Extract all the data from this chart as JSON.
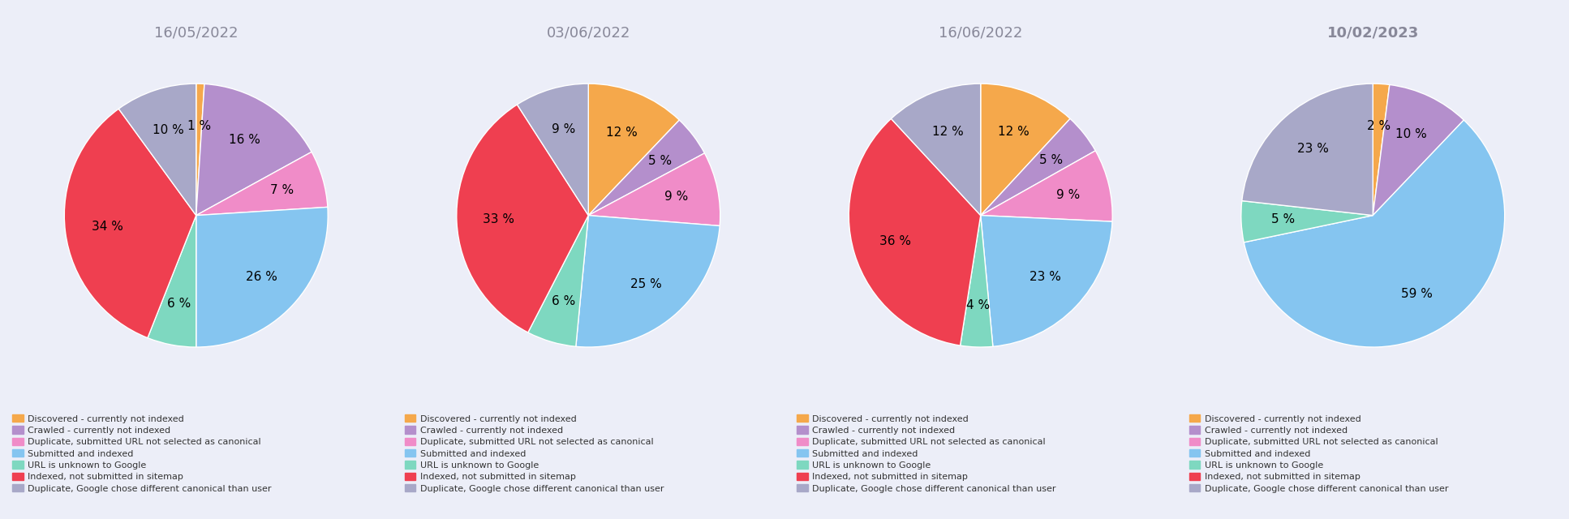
{
  "charts": [
    {
      "title": "16/05/2022",
      "title_bold": false,
      "values": [
        1,
        16,
        7,
        26,
        6,
        34,
        10
      ],
      "start_angle": 90
    },
    {
      "title": "03/06/2022",
      "title_bold": false,
      "values": [
        12,
        5,
        9,
        25,
        6,
        33,
        9
      ],
      "start_angle": 90
    },
    {
      "title": "16/06/2022",
      "title_bold": false,
      "values": [
        12,
        5,
        9,
        23,
        4,
        36,
        12
      ],
      "start_angle": 90
    },
    {
      "title": "10/02/2023",
      "title_bold": true,
      "values": [
        2,
        10,
        0,
        59,
        5,
        0,
        23
      ],
      "start_angle": 90
    }
  ],
  "slice_colors": [
    "#F5A84B",
    "#B48FCC",
    "#F08CC8",
    "#85C5F0",
    "#7ED8C0",
    "#EF3F50",
    "#A8A8C8"
  ],
  "background_color": "#ECEEF8",
  "legend_labels": [
    "Discovered - currently not indexed",
    "Crawled - currently not indexed",
    "Duplicate, submitted URL not selected as canonical",
    "Submitted and indexed",
    "URL is unknown to Google",
    "Indexed, not submitted in sitemap",
    "Duplicate, Google chose different canonical than user"
  ],
  "label_fontsize": 11,
  "title_fontsize": 13,
  "legend_fontsize": 8
}
